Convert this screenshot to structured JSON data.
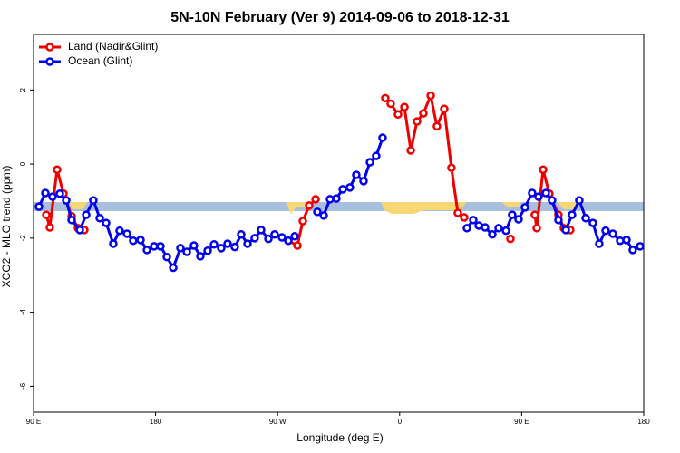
{
  "chart_data": {
    "type": "line",
    "title": "5N-10N February (Ver 9)   2014-09-06 to 2018-12-31",
    "x_label": "Longitude (deg E)",
    "y_label": "XCO2 - MLO trend (ppm)",
    "xlim": [
      90,
      540
    ],
    "ylim": [
      -6.7,
      3.5
    ],
    "xticks": [
      {
        "value": 90,
        "label": "90 E"
      },
      180,
      {
        "value": 270,
        "label": "90 W"
      },
      {
        "value": 360,
        "label": "0"
      },
      {
        "value": 450,
        "label": "90 E"
      },
      {
        "value": 540,
        "label": "180"
      }
    ],
    "yticks": [
      -6,
      -4,
      -2,
      0,
      2
    ],
    "legend": "top-left",
    "series": [
      {
        "name": "Land (Nadir&Glint)",
        "color": "#ee0000",
        "x": [
          99.4,
          102.0,
          107.4,
          112.1,
          118.1,
          122.8,
          127.4,
          null,
          277.9,
          284.6,
          288.6,
          293.3,
          298.0,
          null,
          349.4,
          353.4,
          358.8,
          363.5,
          368.2,
          372.8,
          377.5,
          382.9,
          387.5,
          392.9,
          398.2,
          402.9,
          407.6,
          null,
          441.7,
          null,
          459.7,
          461.1,
          465.8,
          470.4,
          477.1,
          481.1,
          485.8
        ],
        "values": [
          -1.37,
          -1.71,
          -0.15,
          -0.8,
          -1.41,
          -1.73,
          -1.78,
          null,
          -2.07,
          -2.2,
          -1.54,
          -1.12,
          -0.95,
          null,
          1.78,
          1.63,
          1.34,
          1.54,
          0.37,
          1.15,
          1.37,
          1.85,
          1.02,
          1.49,
          -0.1,
          -1.32,
          -1.44,
          null,
          -2.02,
          null,
          -1.37,
          -1.73,
          -0.15,
          -0.8,
          -1.37,
          -1.73,
          -1.78
        ]
      },
      {
        "name": "Ocean (Glint)",
        "color": "#0000ee",
        "x": [
          94.0,
          98.7,
          104.0,
          109.4,
          114.1,
          118.1,
          124.1,
          128.8,
          134.1,
          138.8,
          143.5,
          148.8,
          153.5,
          158.9,
          163.5,
          168.9,
          173.6,
          178.9,
          183.6,
          188.3,
          193.0,
          198.3,
          203.0,
          208.3,
          213.0,
          218.4,
          223.1,
          228.4,
          233.1,
          238.4,
          243.1,
          247.8,
          253.1,
          257.8,
          263.2,
          267.8,
          273.2,
          277.9,
          282.6,
          null,
          299.3,
          304.0,
          308.6,
          313.3,
          318.0,
          323.3,
          328.0,
          333.4,
          338.1,
          342.7,
          347.4,
          null,
          409.6,
          414.3,
          418.3,
          423.0,
          428.3,
          433.0,
          438.4,
          443.0,
          447.7,
          452.4,
          457.7,
          462.4,
          467.8,
          472.4,
          477.1,
          482.5,
          487.1,
          492.5,
          497.2,
          502.5,
          507.2,
          511.9,
          517.2,
          522.6,
          527.3,
          531.9,
          537.3
        ],
        "values": [
          -1.15,
          -0.78,
          -0.88,
          -0.8,
          -0.98,
          -1.51,
          -1.78,
          -1.37,
          -0.98,
          -1.46,
          -1.59,
          -2.15,
          -1.8,
          -1.88,
          -2.07,
          -2.05,
          -2.32,
          -2.22,
          -2.22,
          -2.51,
          -2.8,
          -2.27,
          -2.37,
          -2.2,
          -2.49,
          -2.34,
          -2.17,
          -2.27,
          -2.15,
          -2.24,
          -1.9,
          -2.15,
          -2.0,
          -1.78,
          -2.02,
          -1.9,
          -1.98,
          -2.07,
          -1.95,
          null,
          -1.29,
          -1.39,
          -0.95,
          -0.93,
          -0.68,
          -0.63,
          -0.29,
          -0.46,
          0.05,
          0.22,
          0.71,
          null,
          -1.73,
          -1.51,
          -1.66,
          -1.71,
          -1.9,
          -1.73,
          -1.8,
          -1.37,
          -1.49,
          -1.17,
          -0.78,
          -0.88,
          -0.78,
          -0.98,
          -1.51,
          -1.78,
          -1.37,
          -0.98,
          -1.46,
          -1.59,
          -2.15,
          -1.8,
          -1.88,
          -2.07,
          -2.05,
          -2.32,
          -2.22
        ]
      }
    ]
  }
}
